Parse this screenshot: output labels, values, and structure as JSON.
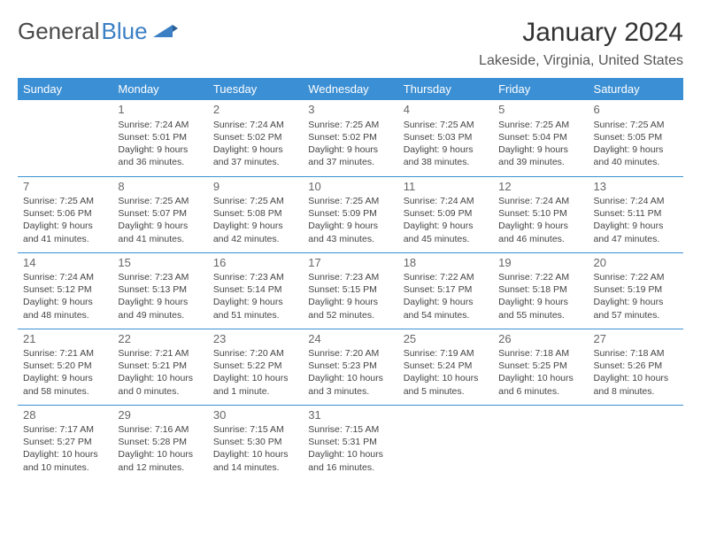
{
  "logo": {
    "text1": "General",
    "text2": "Blue"
  },
  "title": "January 2024",
  "location": "Lakeside, Virginia, United States",
  "day_headers": [
    "Sunday",
    "Monday",
    "Tuesday",
    "Wednesday",
    "Thursday",
    "Friday",
    "Saturday"
  ],
  "colors": {
    "header_bg": "#3b8fd4",
    "header_text": "#ffffff",
    "logo_blue": "#3b7fc4",
    "cell_border": "#3b8fd4"
  },
  "weeks": [
    [
      {
        "num": "",
        "lines": [
          "",
          "",
          "",
          ""
        ]
      },
      {
        "num": "1",
        "lines": [
          "Sunrise: 7:24 AM",
          "Sunset: 5:01 PM",
          "Daylight: 9 hours",
          "and 36 minutes."
        ]
      },
      {
        "num": "2",
        "lines": [
          "Sunrise: 7:24 AM",
          "Sunset: 5:02 PM",
          "Daylight: 9 hours",
          "and 37 minutes."
        ]
      },
      {
        "num": "3",
        "lines": [
          "Sunrise: 7:25 AM",
          "Sunset: 5:02 PM",
          "Daylight: 9 hours",
          "and 37 minutes."
        ]
      },
      {
        "num": "4",
        "lines": [
          "Sunrise: 7:25 AM",
          "Sunset: 5:03 PM",
          "Daylight: 9 hours",
          "and 38 minutes."
        ]
      },
      {
        "num": "5",
        "lines": [
          "Sunrise: 7:25 AM",
          "Sunset: 5:04 PM",
          "Daylight: 9 hours",
          "and 39 minutes."
        ]
      },
      {
        "num": "6",
        "lines": [
          "Sunrise: 7:25 AM",
          "Sunset: 5:05 PM",
          "Daylight: 9 hours",
          "and 40 minutes."
        ]
      }
    ],
    [
      {
        "num": "7",
        "lines": [
          "Sunrise: 7:25 AM",
          "Sunset: 5:06 PM",
          "Daylight: 9 hours",
          "and 41 minutes."
        ]
      },
      {
        "num": "8",
        "lines": [
          "Sunrise: 7:25 AM",
          "Sunset: 5:07 PM",
          "Daylight: 9 hours",
          "and 41 minutes."
        ]
      },
      {
        "num": "9",
        "lines": [
          "Sunrise: 7:25 AM",
          "Sunset: 5:08 PM",
          "Daylight: 9 hours",
          "and 42 minutes."
        ]
      },
      {
        "num": "10",
        "lines": [
          "Sunrise: 7:25 AM",
          "Sunset: 5:09 PM",
          "Daylight: 9 hours",
          "and 43 minutes."
        ]
      },
      {
        "num": "11",
        "lines": [
          "Sunrise: 7:24 AM",
          "Sunset: 5:09 PM",
          "Daylight: 9 hours",
          "and 45 minutes."
        ]
      },
      {
        "num": "12",
        "lines": [
          "Sunrise: 7:24 AM",
          "Sunset: 5:10 PM",
          "Daylight: 9 hours",
          "and 46 minutes."
        ]
      },
      {
        "num": "13",
        "lines": [
          "Sunrise: 7:24 AM",
          "Sunset: 5:11 PM",
          "Daylight: 9 hours",
          "and 47 minutes."
        ]
      }
    ],
    [
      {
        "num": "14",
        "lines": [
          "Sunrise: 7:24 AM",
          "Sunset: 5:12 PM",
          "Daylight: 9 hours",
          "and 48 minutes."
        ]
      },
      {
        "num": "15",
        "lines": [
          "Sunrise: 7:23 AM",
          "Sunset: 5:13 PM",
          "Daylight: 9 hours",
          "and 49 minutes."
        ]
      },
      {
        "num": "16",
        "lines": [
          "Sunrise: 7:23 AM",
          "Sunset: 5:14 PM",
          "Daylight: 9 hours",
          "and 51 minutes."
        ]
      },
      {
        "num": "17",
        "lines": [
          "Sunrise: 7:23 AM",
          "Sunset: 5:15 PM",
          "Daylight: 9 hours",
          "and 52 minutes."
        ]
      },
      {
        "num": "18",
        "lines": [
          "Sunrise: 7:22 AM",
          "Sunset: 5:17 PM",
          "Daylight: 9 hours",
          "and 54 minutes."
        ]
      },
      {
        "num": "19",
        "lines": [
          "Sunrise: 7:22 AM",
          "Sunset: 5:18 PM",
          "Daylight: 9 hours",
          "and 55 minutes."
        ]
      },
      {
        "num": "20",
        "lines": [
          "Sunrise: 7:22 AM",
          "Sunset: 5:19 PM",
          "Daylight: 9 hours",
          "and 57 minutes."
        ]
      }
    ],
    [
      {
        "num": "21",
        "lines": [
          "Sunrise: 7:21 AM",
          "Sunset: 5:20 PM",
          "Daylight: 9 hours",
          "and 58 minutes."
        ]
      },
      {
        "num": "22",
        "lines": [
          "Sunrise: 7:21 AM",
          "Sunset: 5:21 PM",
          "Daylight: 10 hours",
          "and 0 minutes."
        ]
      },
      {
        "num": "23",
        "lines": [
          "Sunrise: 7:20 AM",
          "Sunset: 5:22 PM",
          "Daylight: 10 hours",
          "and 1 minute."
        ]
      },
      {
        "num": "24",
        "lines": [
          "Sunrise: 7:20 AM",
          "Sunset: 5:23 PM",
          "Daylight: 10 hours",
          "and 3 minutes."
        ]
      },
      {
        "num": "25",
        "lines": [
          "Sunrise: 7:19 AM",
          "Sunset: 5:24 PM",
          "Daylight: 10 hours",
          "and 5 minutes."
        ]
      },
      {
        "num": "26",
        "lines": [
          "Sunrise: 7:18 AM",
          "Sunset: 5:25 PM",
          "Daylight: 10 hours",
          "and 6 minutes."
        ]
      },
      {
        "num": "27",
        "lines": [
          "Sunrise: 7:18 AM",
          "Sunset: 5:26 PM",
          "Daylight: 10 hours",
          "and 8 minutes."
        ]
      }
    ],
    [
      {
        "num": "28",
        "lines": [
          "Sunrise: 7:17 AM",
          "Sunset: 5:27 PM",
          "Daylight: 10 hours",
          "and 10 minutes."
        ]
      },
      {
        "num": "29",
        "lines": [
          "Sunrise: 7:16 AM",
          "Sunset: 5:28 PM",
          "Daylight: 10 hours",
          "and 12 minutes."
        ]
      },
      {
        "num": "30",
        "lines": [
          "Sunrise: 7:15 AM",
          "Sunset: 5:30 PM",
          "Daylight: 10 hours",
          "and 14 minutes."
        ]
      },
      {
        "num": "31",
        "lines": [
          "Sunrise: 7:15 AM",
          "Sunset: 5:31 PM",
          "Daylight: 10 hours",
          "and 16 minutes."
        ]
      },
      {
        "num": "",
        "lines": [
          "",
          "",
          "",
          ""
        ]
      },
      {
        "num": "",
        "lines": [
          "",
          "",
          "",
          ""
        ]
      },
      {
        "num": "",
        "lines": [
          "",
          "",
          "",
          ""
        ]
      }
    ]
  ]
}
